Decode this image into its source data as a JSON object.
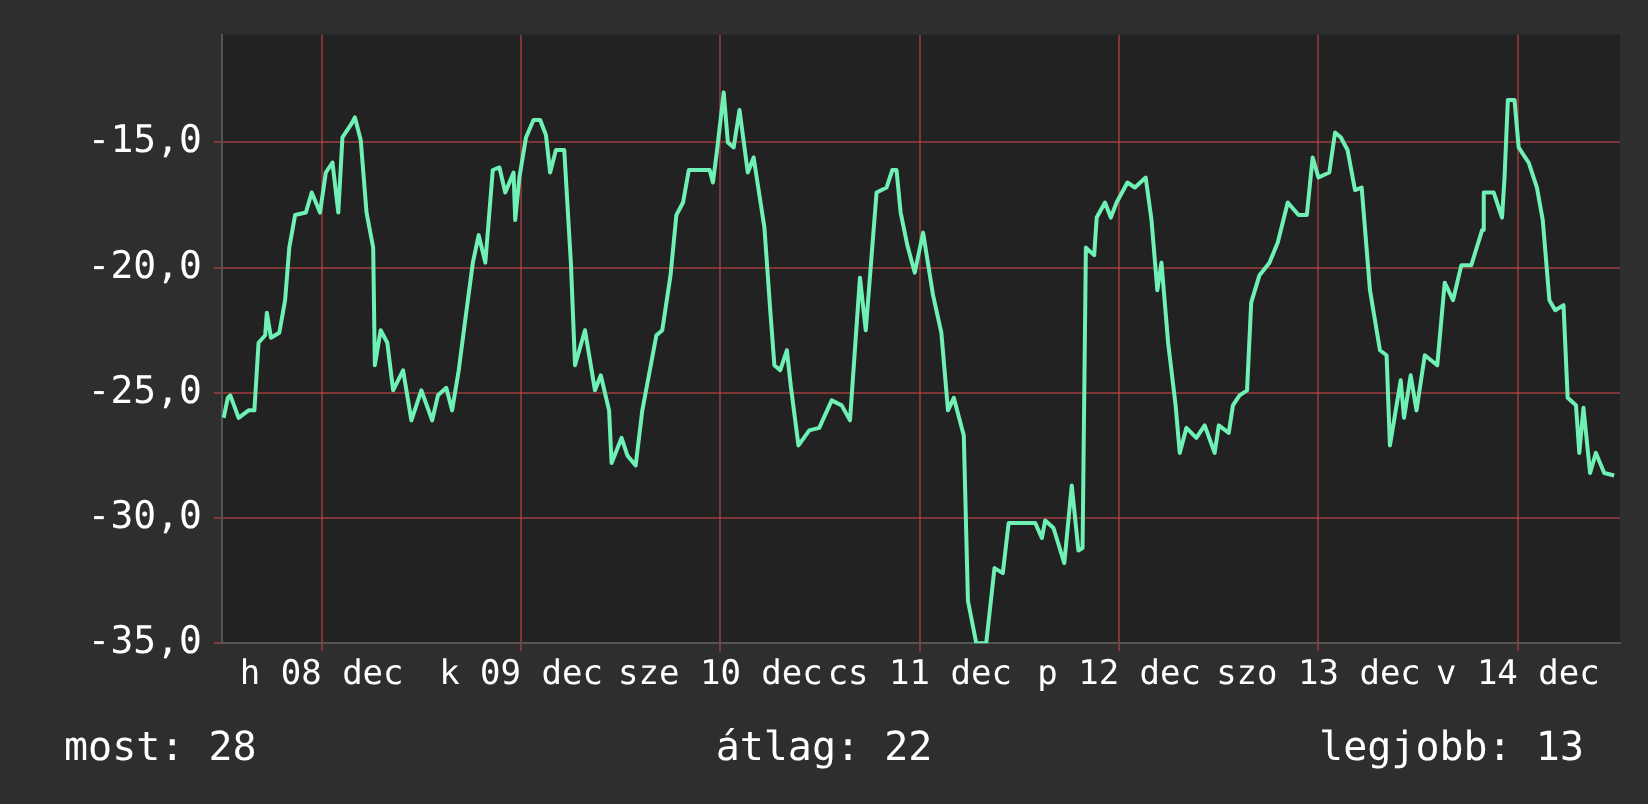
{
  "chart_data": {
    "type": "line",
    "grid": true,
    "legend": false,
    "marker": "none",
    "line_style": "solid",
    "xlim": [
      "--12-07T12:00",
      "--12-14T12:18"
    ],
    "ylim": [
      -35,
      -10.7
    ],
    "xticks": [
      {
        "value": "--12-08",
        "label": "h 08 dec"
      },
      {
        "value": "--12-09",
        "label": "k 09 dec"
      },
      {
        "value": "--12-10",
        "label": "sze 10 dec"
      },
      {
        "value": "--12-11",
        "label": "cs 11 dec"
      },
      {
        "value": "--12-12",
        "label": "p 12 dec"
      },
      {
        "value": "--12-13",
        "label": "szo 13 dec"
      },
      {
        "value": "--12-14",
        "label": "v 14 dec"
      }
    ],
    "yticks": [
      {
        "value": -35,
        "label": "-35,0"
      },
      {
        "value": -30,
        "label": "-30,0"
      },
      {
        "value": -25,
        "label": "-25,0"
      },
      {
        "value": -20,
        "label": "-20,0"
      },
      {
        "value": -15,
        "label": "-15,0"
      }
    ],
    "annotations": [
      "most: 28",
      "átlag: 22",
      "legjobb: 13"
    ],
    "series": [
      {
        "color": "#6ff0b4",
        "x": [
          "--12-07T12:12",
          "--12-07T12:42",
          "--12-07T13:00",
          "--12-07T14:00",
          "--12-07T15:12",
          "--12-07T15:54",
          "--12-07T16:24",
          "--12-07T17:12",
          "--12-07T17:24",
          "--12-07T17:54",
          "--12-07T18:54",
          "--12-07T19:36",
          "--12-07T20:06",
          "--12-07T20:48",
          "--12-07T22:06",
          "--12-07T22:48",
          "--12-07T23:48",
          "--12-08T00:30",
          "--12-08T01:18",
          "--12-08T02:00",
          "--12-08T02:30",
          "--12-08T03:30",
          "--12-08T04:00",
          "--12-08T04:42",
          "--12-08T05:24",
          "--12-08T06:12",
          "--12-08T06:24",
          "--12-08T07:06",
          "--12-08T07:54",
          "--12-08T08:36",
          "--12-08T09:48",
          "--12-08T10:48",
          "--12-08T12:00",
          "--12-08T13:18",
          "--12-08T14:00",
          "--12-08T15:00",
          "--12-08T15:42",
          "--12-08T16:30",
          "--12-08T17:12",
          "--12-08T18:12",
          "--12-08T18:54",
          "--12-08T19:42",
          "--12-08T20:36",
          "--12-08T21:24",
          "--12-08T22:06",
          "--12-08T23:06",
          "--12-08T23:18",
          "--12-08T23:48",
          "--12-09T00:36",
          "--12-09T01:30",
          "--12-09T02:18",
          "--12-09T03:00",
          "--12-09T03:30",
          "--12-09T04:12",
          "--12-09T05:12",
          "--12-09T06:00",
          "--12-09T06:30",
          "--12-09T07:42",
          "--12-09T08:54",
          "--12-09T09:36",
          "--12-09T10:36",
          "--12-09T10:54",
          "--12-09T12:06",
          "--12-09T12:48",
          "--12-09T13:48",
          "--12-09T14:36",
          "--12-09T16:18",
          "--12-09T17:00",
          "--12-09T18:00",
          "--12-09T18:42",
          "--12-09T19:30",
          "--12-09T20:12",
          "--12-09T22:42",
          "--12-09T23:06",
          "--12-09T23:36",
          "--12-10T00:24",
          "--12-10T00:54",
          "--12-10T01:36",
          "--12-10T02:18",
          "--12-10T03:18",
          "--12-10T04:00",
          "--12-10T05:18",
          "--12-10T06:00",
          "--12-10T06:30",
          "--12-10T07:12",
          "--12-10T08:00",
          "--12-10T08:30",
          "--12-10T09:24",
          "--12-10T10:42",
          "--12-10T11:54",
          "--12-10T13:24",
          "--12-10T14:36",
          "--12-10T15:36",
          "--12-10T16:48",
          "--12-10T17:30",
          "--12-10T18:48",
          "--12-10T20:00",
          "--12-10T20:42",
          "--12-10T21:12",
          "--12-10T21:42",
          "--12-10T22:30",
          "--12-10T23:24",
          "--12-11T00:24",
          "--12-11T01:36",
          "--12-11T02:36",
          "--12-11T03:24",
          "--12-11T04:06",
          "--12-11T05:18",
          "--12-11T05:48",
          "--12-11T06:48",
          "--12-11T08:00",
          "--12-11T09:00",
          "--12-11T10:00",
          "--12-11T10:42",
          "--12-11T13:54",
          "--12-11T14:42",
          "--12-11T15:06",
          "--12-11T16:06",
          "--12-11T17:24",
          "--12-11T18:18",
          "--12-11T19:06",
          "--12-11T19:36",
          "--12-11T20:00",
          "--12-11T21:00",
          "--12-11T21:18",
          "--12-11T22:18",
          "--12-11T23:00",
          "--12-11T23:42",
          "--12-12T01:00",
          "--12-12T01:54",
          "--12-12T03:12",
          "--12-12T03:54",
          "--12-12T04:36",
          "--12-12T05:06",
          "--12-12T05:54",
          "--12-12T06:48",
          "--12-12T07:18",
          "--12-12T08:06",
          "--12-12T09:18",
          "--12-12T10:18",
          "--12-12T11:30",
          "--12-12T12:00",
          "--12-12T13:12",
          "--12-12T13:42",
          "--12-12T14:30",
          "--12-12T15:24",
          "--12-12T15:54",
          "--12-12T16:54",
          "--12-12T18:06",
          "--12-12T19:06",
          "--12-12T20:18",
          "--12-12T21:36",
          "--12-12T22:36",
          "--12-12T23:18",
          "--12-13T00:00",
          "--12-13T01:18",
          "--12-13T02:00",
          "--12-13T02:42",
          "--12-13T03:30",
          "--12-13T04:24",
          "--12-13T05:12",
          "--12-13T06:12",
          "--12-13T07:24",
          "--12-13T08:12",
          "--12-13T08:36",
          "--12-13T09:54",
          "--12-13T10:18",
          "--12-13T11:06",
          "--12-13T11:48",
          "--12-13T12:48",
          "--12-13T14:18",
          "--12-13T15:12",
          "--12-13T16:12",
          "--12-13T17:12",
          "--12-13T18:24",
          "--12-13T19:42",
          "--12-13T19:54",
          "--12-13T21:06",
          "--12-13T22:06",
          "--12-13T22:24",
          "--12-13T22:48",
          "--12-13T23:36",
          "--12-14T00:06",
          "--12-14T01:18",
          "--12-14T02:18",
          "--12-14T03:00",
          "--12-14T03:48",
          "--12-14T04:30",
          "--12-14T05:30",
          "--12-14T06:00",
          "--12-14T07:00",
          "--12-14T07:24",
          "--12-14T07:54",
          "--12-14T08:42",
          "--12-14T09:24",
          "--12-14T10:24",
          "--12-14T11:36"
        ],
        "values": [
          -26.0,
          -25.2,
          -25.1,
          -26.0,
          -25.7,
          -25.7,
          -23.0,
          -22.7,
          -21.8,
          -22.8,
          -22.6,
          -21.3,
          -19.2,
          -17.9,
          -17.8,
          -17.0,
          -17.8,
          -16.2,
          -15.8,
          -17.8,
          -14.8,
          -14.3,
          -14.0,
          -14.9,
          -17.8,
          -19.2,
          -23.9,
          -22.5,
          -23.0,
          -24.9,
          -24.1,
          -26.1,
          -24.9,
          -26.1,
          -25.1,
          -24.8,
          -25.7,
          -24.1,
          -22.3,
          -19.8,
          -18.7,
          -19.8,
          -16.1,
          -16.0,
          -17.0,
          -16.2,
          -18.1,
          -16.4,
          -14.8,
          -14.1,
          -14.1,
          -14.7,
          -16.2,
          -15.3,
          -15.3,
          -19.8,
          -23.9,
          -22.5,
          -24.9,
          -24.3,
          -25.7,
          -27.8,
          -26.8,
          -27.5,
          -27.9,
          -25.7,
          -22.7,
          -22.5,
          -20.3,
          -17.9,
          -17.4,
          -16.1,
          -16.1,
          -16.6,
          -15.3,
          -13.0,
          -15.0,
          -15.2,
          -13.7,
          -16.2,
          -15.6,
          -18.4,
          -21.7,
          -23.9,
          -24.1,
          -23.3,
          -24.8,
          -27.1,
          -26.5,
          -26.4,
          -25.3,
          -25.5,
          -26.1,
          -20.4,
          -22.5,
          -17.0,
          -16.8,
          -16.1,
          -16.1,
          -17.8,
          -19.1,
          -20.2,
          -18.6,
          -21.1,
          -22.6,
          -25.7,
          -25.2,
          -26.7,
          -33.3,
          -35.0,
          -35.0,
          -32.0,
          -32.2,
          -30.2,
          -30.2,
          -30.8,
          -30.1,
          -30.4,
          -31.8,
          -28.7,
          -31.3,
          -31.2,
          -19.2,
          -19.5,
          -18.0,
          -17.4,
          -18.0,
          -17.4,
          -16.6,
          -16.8,
          -16.4,
          -18.1,
          -20.9,
          -19.8,
          -23.0,
          -25.5,
          -27.4,
          -26.4,
          -26.8,
          -26.3,
          -27.4,
          -26.3,
          -26.6,
          -25.5,
          -25.1,
          -24.9,
          -21.4,
          -20.3,
          -19.8,
          -19.0,
          -17.4,
          -17.9,
          -17.9,
          -15.6,
          -16.4,
          -16.2,
          -14.6,
          -14.8,
          -15.3,
          -16.9,
          -16.8,
          -20.9,
          -23.3,
          -23.5,
          -27.1,
          -24.5,
          -26.0,
          -24.3,
          -25.7,
          -23.5,
          -23.9,
          -20.6,
          -21.3,
          -19.9,
          -19.9,
          -18.5,
          -17.0,
          -17.0,
          -18.0,
          -16.4,
          -13.3,
          -13.3,
          -15.2,
          -15.8,
          -16.8,
          -18.1,
          -21.3,
          -21.7,
          -21.5,
          -25.2,
          -25.5,
          -27.4,
          -25.6,
          -28.2,
          -27.4,
          -28.2,
          -28.3
        ]
      }
    ]
  }
}
